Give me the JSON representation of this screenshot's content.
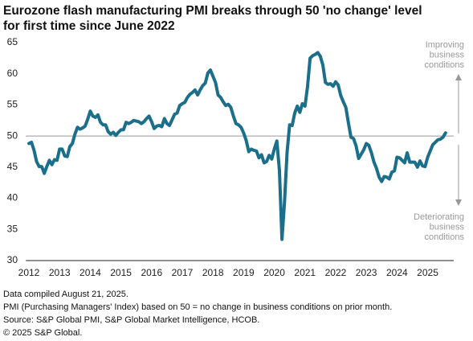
{
  "chart_data": {
    "type": "line",
    "title": [
      "Eurozone flash manufacturing PMI breaks through 50  'no change' level",
      "for first time since June 2022"
    ],
    "annotations": [
      [
        "Improving",
        "business",
        "conditions"
      ],
      [
        "Deteriorating",
        "business",
        "conditions"
      ]
    ],
    "footnotes": [
      "Data compiled August 21, 2025.",
      "PMI (Purchasing Managers' Index) based on 50 = no change in business conditions on prior month.",
      "Source: S&P Global PMI, S&P Global Market Intelligence, HCOB.",
      "© 2025 S&P Global."
    ],
    "reference_line": 50,
    "color": "#1b6f8a",
    "x": [
      2012,
      2012.083,
      2012.167,
      2012.25,
      2012.333,
      2012.417,
      2012.5,
      2012.583,
      2012.667,
      2012.75,
      2012.833,
      2012.917,
      2013,
      2013.083,
      2013.167,
      2013.25,
      2013.333,
      2013.417,
      2013.5,
      2013.583,
      2013.667,
      2013.75,
      2013.833,
      2013.917,
      2014,
      2014.083,
      2014.167,
      2014.25,
      2014.333,
      2014.417,
      2014.5,
      2014.583,
      2014.667,
      2014.75,
      2014.833,
      2014.917,
      2015,
      2015.083,
      2015.167,
      2015.25,
      2015.333,
      2015.417,
      2015.5,
      2015.583,
      2015.667,
      2015.75,
      2015.833,
      2015.917,
      2016,
      2016.083,
      2016.167,
      2016.25,
      2016.333,
      2016.417,
      2016.5,
      2016.583,
      2016.667,
      2016.75,
      2016.833,
      2016.917,
      2017,
      2017.083,
      2017.167,
      2017.25,
      2017.333,
      2017.417,
      2017.5,
      2017.583,
      2017.667,
      2017.75,
      2017.833,
      2017.917,
      2018,
      2018.083,
      2018.167,
      2018.25,
      2018.333,
      2018.417,
      2018.5,
      2018.583,
      2018.667,
      2018.75,
      2018.833,
      2018.917,
      2019,
      2019.083,
      2019.167,
      2019.25,
      2019.333,
      2019.417,
      2019.5,
      2019.583,
      2019.667,
      2019.75,
      2019.833,
      2019.917,
      2020,
      2020.083,
      2020.167,
      2020.25,
      2020.333,
      2020.417,
      2020.5,
      2020.583,
      2020.667,
      2020.75,
      2020.833,
      2020.917,
      2021,
      2021.083,
      2021.167,
      2021.25,
      2021.333,
      2021.417,
      2021.5,
      2021.583,
      2021.667,
      2021.75,
      2021.833,
      2021.917,
      2022,
      2022.083,
      2022.167,
      2022.25,
      2022.333,
      2022.417,
      2022.5,
      2022.583,
      2022.667,
      2022.75,
      2022.833,
      2022.917,
      2023,
      2023.083,
      2023.167,
      2023.25,
      2023.333,
      2023.417,
      2023.5,
      2023.583,
      2023.667,
      2023.75,
      2023.833,
      2023.917,
      2024,
      2024.083,
      2024.167,
      2024.25,
      2024.333,
      2024.417,
      2024.5,
      2024.583,
      2024.667,
      2024.75,
      2024.833,
      2024.917,
      2025,
      2025.083,
      2025.167,
      2025.25,
      2025.333,
      2025.417,
      2025.5,
      2025.583
    ],
    "values": [
      48.8,
      49.0,
      47.7,
      45.9,
      45.1,
      45.1,
      44.0,
      45.1,
      46.1,
      45.4,
      46.2,
      46.1,
      47.9,
      47.9,
      46.8,
      46.7,
      48.3,
      48.8,
      50.3,
      51.4,
      51.1,
      51.3,
      51.6,
      52.7,
      54.0,
      53.2,
      53.0,
      53.4,
      52.2,
      51.8,
      51.8,
      50.7,
      50.3,
      50.6,
      50.1,
      50.6,
      51.0,
      51.0,
      52.2,
      52.0,
      52.2,
      52.5,
      52.4,
      52.3,
      52.0,
      52.3,
      52.8,
      53.2,
      52.3,
      51.2,
      51.6,
      51.7,
      51.5,
      52.8,
      52.0,
      51.7,
      52.6,
      53.5,
      53.7,
      54.9,
      55.2,
      55.4,
      56.2,
      56.7,
      57.0,
      57.4,
      56.6,
      57.4,
      58.1,
      58.5,
      60.1,
      60.6,
      59.6,
      58.6,
      56.6,
      56.2,
      55.5,
      54.9,
      55.1,
      54.6,
      53.2,
      52.0,
      51.8,
      51.4,
      50.5,
      49.3,
      47.5,
      47.9,
      47.7,
      47.6,
      46.5,
      47.0,
      45.7,
      45.9,
      46.9,
      46.3,
      47.9,
      49.2,
      44.5,
      33.4,
      39.4,
      47.4,
      51.8,
      51.7,
      53.7,
      54.8,
      53.8,
      55.2,
      54.8,
      57.9,
      62.5,
      62.9,
      63.1,
      63.4,
      62.8,
      61.4,
      58.6,
      58.3,
      58.4,
      58.0,
      58.7,
      58.2,
      56.5,
      55.5,
      54.6,
      52.1,
      49.8,
      49.6,
      48.4,
      46.4,
      47.1,
      47.8,
      48.8,
      48.5,
      47.3,
      45.8,
      44.8,
      43.4,
      42.7,
      43.5,
      43.4,
      43.1,
      44.2,
      44.4,
      46.6,
      46.5,
      46.1,
      45.7,
      47.3,
      45.8,
      45.8,
      45.8,
      45.0,
      46.0,
      45.2,
      45.1,
      46.6,
      47.6,
      48.6,
      49.0,
      49.4,
      49.5,
      49.8,
      50.5
    ],
    "xlim": [
      2011.9,
      2025.85
    ],
    "xticks": [
      2012,
      2013,
      2014,
      2015,
      2016,
      2017,
      2018,
      2019,
      2020,
      2021,
      2022,
      2023,
      2024,
      2025
    ],
    "ylim": [
      30,
      65
    ],
    "yticks": [
      30,
      35,
      40,
      45,
      50,
      55,
      60,
      65
    ]
  }
}
